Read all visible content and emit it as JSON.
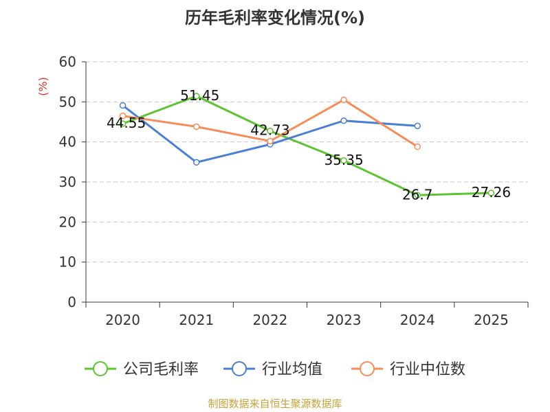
{
  "chart_data": {
    "type": "line",
    "title": "历年毛利率变化情况(%)",
    "ylabel": "(%)",
    "ylim": [
      0,
      60
    ],
    "yticks": [
      0,
      10,
      20,
      30,
      40,
      50,
      60
    ],
    "categories": [
      "2020",
      "2021",
      "2022",
      "2023",
      "2024",
      "2025"
    ],
    "grid": true,
    "legend_position": "bottom",
    "series": [
      {
        "name": "公司毛利率",
        "color": "#5cc42f",
        "values": [
          44.55,
          51.45,
          42.73,
          35.35,
          26.7,
          27.26
        ],
        "labels": [
          "44.55",
          "51.45",
          "42.73",
          "35.35",
          "26.7",
          "27.26"
        ]
      },
      {
        "name": "行业均值",
        "color": "#4a7fd6",
        "values": [
          49.1,
          34.9,
          39.4,
          45.3,
          44.0,
          null
        ]
      },
      {
        "name": "行业中位数",
        "color": "#f78c59",
        "values": [
          46.5,
          43.8,
          40.2,
          50.5,
          38.8,
          null
        ]
      }
    ],
    "source": "制图数据来自恒生聚源数据库"
  }
}
